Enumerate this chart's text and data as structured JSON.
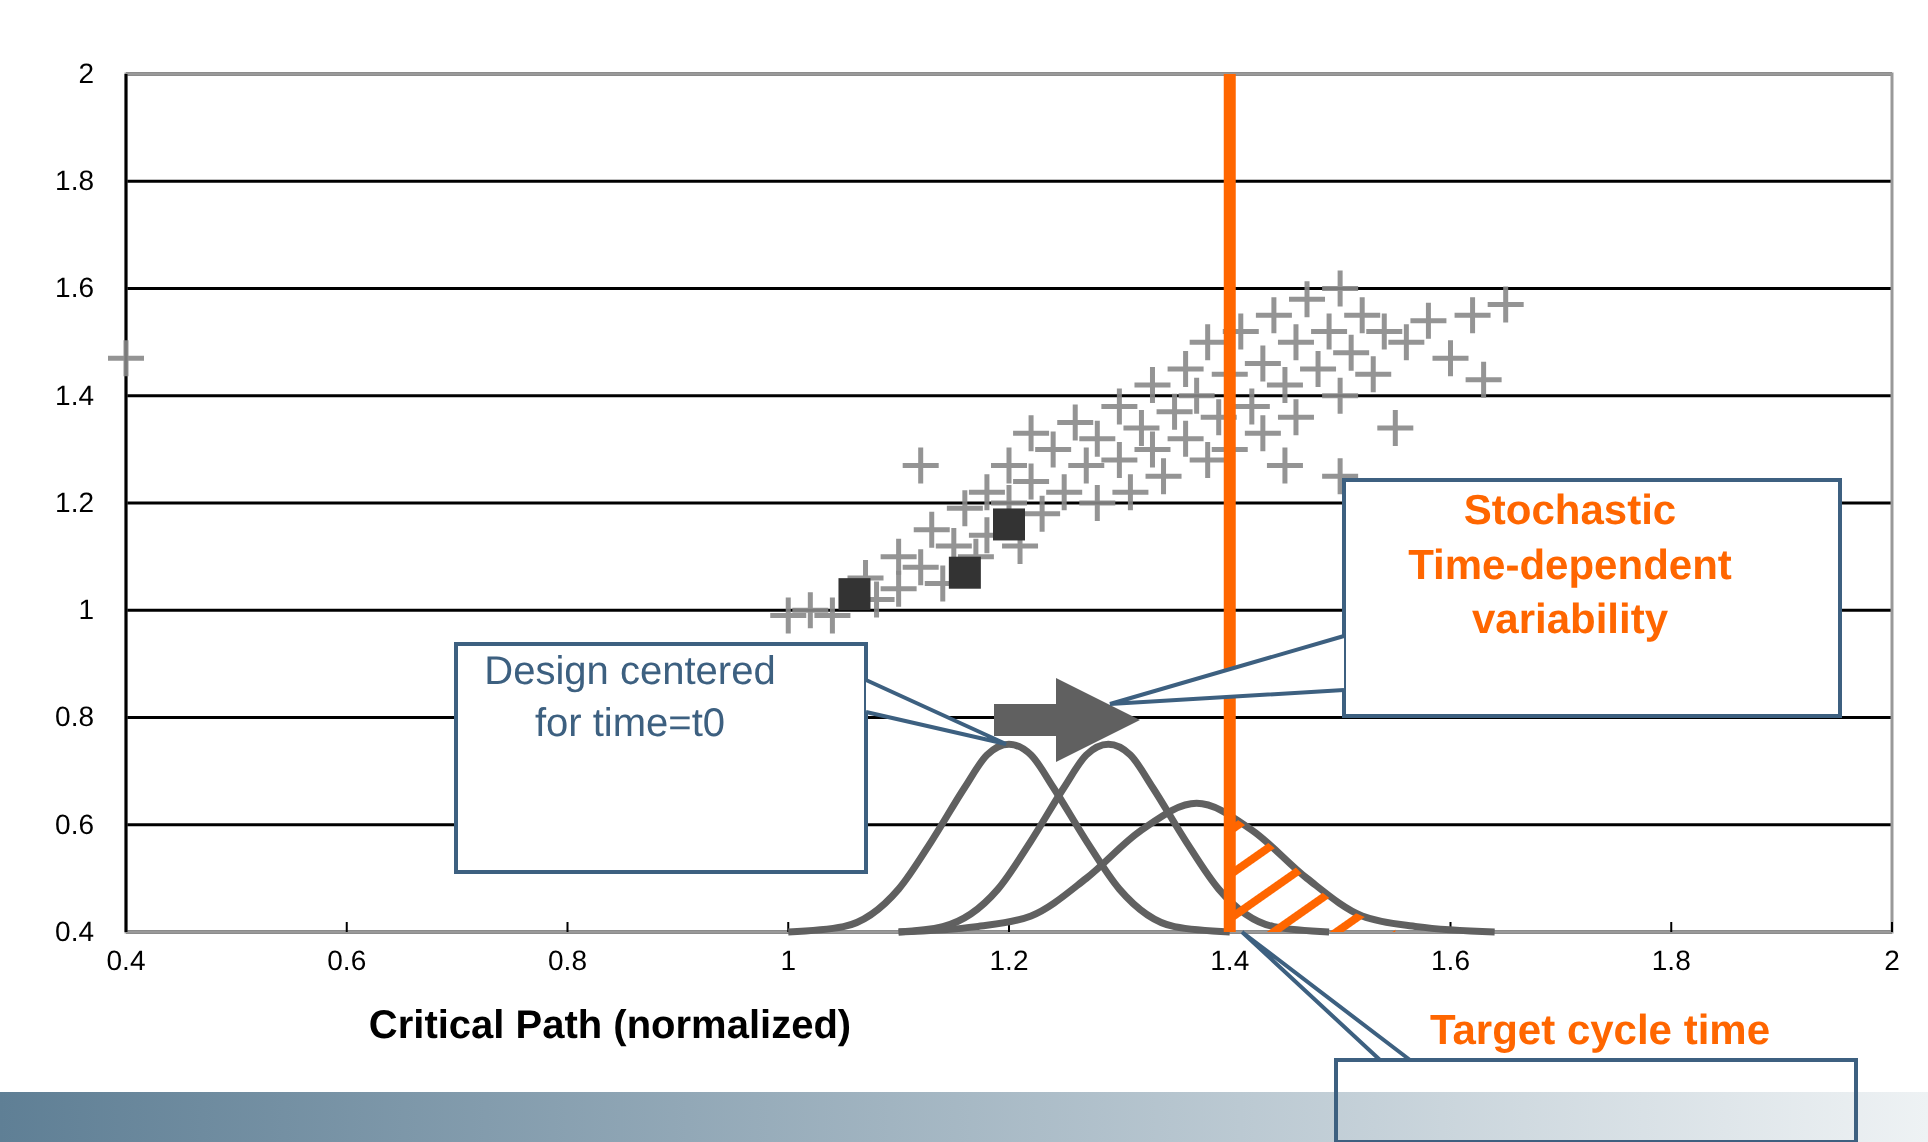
{
  "chart_data": {
    "type": "scatter",
    "xlabel": "Critical Path (normalized)",
    "xlim": [
      0.4,
      2
    ],
    "xticks": [
      0.4,
      0.6,
      0.8,
      1,
      1.2,
      1.4,
      1.6,
      1.8,
      2
    ],
    "ylim": [
      0.4,
      2
    ],
    "yticks": [
      0.4,
      0.6,
      0.8,
      1,
      1.2,
      1.4,
      1.6,
      1.8,
      2
    ],
    "grid": "y",
    "series": [
      {
        "marker": "cross",
        "color": "#888888",
        "x": [
          1.0,
          1.02,
          1.04,
          1.08,
          1.07,
          1.1,
          1.1,
          1.12,
          1.13,
          1.14,
          1.15,
          1.16,
          1.17,
          1.18,
          1.18,
          1.2,
          1.2,
          1.21,
          1.22,
          1.23,
          1.24,
          1.25,
          1.26,
          1.27,
          1.28,
          1.28,
          1.3,
          1.3,
          1.31,
          1.32,
          1.33,
          1.33,
          1.34,
          1.35,
          1.36,
          1.36,
          1.37,
          1.38,
          1.38,
          1.39,
          1.4,
          1.4,
          1.41,
          1.42,
          1.43,
          1.43,
          1.44,
          1.45,
          1.46,
          1.46,
          1.47,
          1.48,
          1.49,
          1.5,
          1.5,
          1.51,
          1.52,
          1.53,
          1.54,
          1.55,
          1.56,
          1.58,
          1.6,
          1.62,
          1.65,
          1.63,
          1.12,
          1.22,
          1.45,
          1.5,
          0.4
        ],
        "values": [
          0.99,
          1.0,
          0.99,
          1.02,
          1.06,
          1.04,
          1.1,
          1.08,
          1.15,
          1.05,
          1.12,
          1.19,
          1.1,
          1.22,
          1.14,
          1.2,
          1.27,
          1.12,
          1.24,
          1.18,
          1.3,
          1.22,
          1.35,
          1.27,
          1.2,
          1.32,
          1.38,
          1.28,
          1.22,
          1.34,
          1.42,
          1.3,
          1.25,
          1.37,
          1.45,
          1.32,
          1.4,
          1.28,
          1.5,
          1.36,
          1.44,
          1.3,
          1.52,
          1.38,
          1.46,
          1.33,
          1.55,
          1.42,
          1.5,
          1.36,
          1.58,
          1.45,
          1.52,
          1.4,
          1.6,
          1.48,
          1.55,
          1.44,
          1.52,
          1.34,
          1.5,
          1.54,
          1.47,
          1.55,
          1.57,
          1.43,
          1.27,
          1.33,
          1.27,
          1.25,
          1.47
        ]
      },
      {
        "marker": "square",
        "color": "#333333",
        "x": [
          1.06,
          1.16,
          1.2
        ],
        "values": [
          1.03,
          1.07,
          1.16
        ]
      },
      {
        "type": "line",
        "color": "#606060",
        "x": [
          1.0,
          1.05,
          1.1,
          1.13,
          1.16,
          1.18,
          1.2,
          1.22,
          1.24,
          1.27,
          1.3,
          1.35,
          1.4
        ],
        "values": [
          0.4,
          0.41,
          0.48,
          0.57,
          0.67,
          0.73,
          0.75,
          0.73,
          0.67,
          0.57,
          0.48,
          0.41,
          0.4
        ]
      },
      {
        "type": "line",
        "color": "#606060",
        "x": [
          1.1,
          1.14,
          1.19,
          1.22,
          1.25,
          1.27,
          1.29,
          1.31,
          1.33,
          1.36,
          1.39,
          1.44,
          1.49
        ],
        "values": [
          0.4,
          0.41,
          0.48,
          0.57,
          0.67,
          0.73,
          0.75,
          0.73,
          0.67,
          0.57,
          0.48,
          0.41,
          0.4
        ]
      },
      {
        "type": "line",
        "color": "#606060",
        "x": [
          1.1,
          1.17,
          1.22,
          1.27,
          1.32,
          1.37,
          1.42,
          1.47,
          1.52,
          1.57,
          1.64
        ],
        "values": [
          0.4,
          0.41,
          0.43,
          0.5,
          0.59,
          0.64,
          0.59,
          0.5,
          0.43,
          0.41,
          0.4
        ]
      },
      {
        "type": "area",
        "color": "#ff6600",
        "x": [
          1.4,
          1.42,
          1.45,
          1.48,
          1.5,
          1.52,
          1.55
        ],
        "values": [
          0.62,
          0.59,
          0.54,
          0.48,
          0.45,
          0.43,
          0.41
        ]
      }
    ],
    "ref_lines": [
      {
        "axis": "x",
        "value": 1.4,
        "color": "#ff6600"
      }
    ],
    "annotations": [
      "Design centered for time=t0",
      "Stochastic Time-dependent variability",
      "Target cycle time"
    ]
  }
}
